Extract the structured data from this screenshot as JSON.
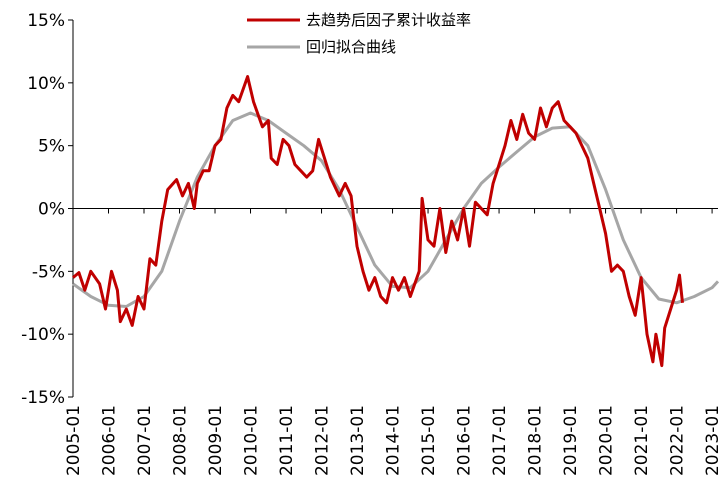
{
  "chart_data": {
    "type": "line",
    "series": [
      {
        "name": "去趋势后因子累计收益率",
        "color": "#c00000",
        "x": [
          "2005-01",
          "2005-03",
          "2005-05",
          "2005-07",
          "2005-10",
          "2005-12",
          "2006-02",
          "2006-04",
          "2006-05",
          "2006-07",
          "2006-09",
          "2006-11",
          "2007-01",
          "2007-03",
          "2007-05",
          "2007-07",
          "2007-09",
          "2007-12",
          "2008-02",
          "2008-04",
          "2008-06",
          "2008-07",
          "2008-09",
          "2008-11",
          "2009-01",
          "2009-03",
          "2009-05",
          "2009-07",
          "2009-09",
          "2009-12",
          "2010-02",
          "2010-05",
          "2010-07",
          "2010-08",
          "2010-10",
          "2010-12",
          "2011-02",
          "2011-04",
          "2011-06",
          "2011-08",
          "2011-10",
          "2011-12",
          "2012-02",
          "2012-04",
          "2012-07",
          "2012-09",
          "2012-11",
          "2013-01",
          "2013-03",
          "2013-05",
          "2013-07",
          "2013-09",
          "2013-11",
          "2014-01",
          "2014-03",
          "2014-05",
          "2014-07",
          "2014-10",
          "2014-11",
          "2015-01",
          "2015-03",
          "2015-05",
          "2015-07",
          "2015-09",
          "2015-11",
          "2016-01",
          "2016-03",
          "2016-05",
          "2016-07",
          "2016-09",
          "2016-11",
          "2017-01",
          "2017-03",
          "2017-05",
          "2017-07",
          "2017-09",
          "2017-11",
          "2018-01",
          "2018-03",
          "2018-05",
          "2018-07",
          "2018-09",
          "2018-11",
          "2019-01",
          "2019-03",
          "2019-05",
          "2019-07",
          "2019-09",
          "2019-11",
          "2020-01",
          "2020-03",
          "2020-05",
          "2020-07",
          "2020-09",
          "2020-11",
          "2021-01",
          "2021-03",
          "2021-05",
          "2021-06",
          "2021-08",
          "2021-09",
          "2021-11",
          "2022-01",
          "2022-02",
          "2022-03"
        ],
        "values": [
          -5.5,
          -5.1,
          -6.5,
          -5,
          -6,
          -8,
          -5,
          -6.5,
          -9,
          -8,
          -9.3,
          -7,
          -8,
          -4,
          -4.5,
          -1,
          1.5,
          2.3,
          1,
          2,
          0,
          2,
          3,
          3,
          5,
          5.5,
          8,
          9,
          8.5,
          10.5,
          8.5,
          6.5,
          7,
          4,
          3.5,
          5.5,
          5,
          3.5,
          3,
          2.5,
          3,
          5.5,
          4,
          2.5,
          1,
          2,
          1,
          -3,
          -5,
          -6.5,
          -5.5,
          -7,
          -7.5,
          -5.5,
          -6.5,
          -5.5,
          -7,
          -5,
          0.8,
          -2.5,
          -3,
          0,
          -3.5,
          -1,
          -2.5,
          0,
          -3,
          0.5,
          0,
          -0.5,
          2,
          3.5,
          5,
          7,
          5.5,
          7.5,
          6,
          5.5,
          8,
          6.5,
          8,
          8.5,
          7,
          6.5,
          6,
          5,
          4,
          2,
          0,
          -2,
          -5,
          -4.5,
          -5,
          -7,
          -8.5,
          -5.5,
          -10,
          -12.2,
          -10,
          -12.5,
          -9.5,
          -8,
          -6.5,
          -5.3,
          -7.5
        ]
      },
      {
        "name": "回归拟合曲线",
        "color": "#a6a6a6",
        "x": [
          "2005-01",
          "2005-07",
          "2006-01",
          "2006-07",
          "2007-01",
          "2007-07",
          "2008-01",
          "2008-07",
          "2009-01",
          "2009-07",
          "2010-01",
          "2010-07",
          "2011-01",
          "2011-07",
          "2012-01",
          "2012-07",
          "2013-01",
          "2013-07",
          "2014-01",
          "2014-07",
          "2015-01",
          "2015-07",
          "2016-01",
          "2016-07",
          "2017-01",
          "2017-07",
          "2018-01",
          "2018-07",
          "2019-01",
          "2019-07",
          "2020-01",
          "2020-07",
          "2021-01",
          "2021-07",
          "2022-01",
          "2022-07",
          "2023-01",
          "2023-03"
        ],
        "values": [
          -6,
          -7,
          -7.7,
          -7.8,
          -7,
          -5,
          -1,
          2.5,
          5,
          7,
          7.6,
          7,
          6,
          5,
          3.8,
          1.5,
          -1.5,
          -4.5,
          -6.2,
          -6.3,
          -5,
          -2.5,
          0,
          2,
          3.3,
          4.5,
          5.7,
          6.4,
          6.5,
          5,
          1.5,
          -2.5,
          -5.5,
          -7.2,
          -7.5,
          -7,
          -6.3,
          -5.8
        ]
      }
    ],
    "xlim": [
      "2005-01",
      "2023-03"
    ],
    "xticks": [
      "2005-01",
      "2006-01",
      "2007-01",
      "2008-01",
      "2009-01",
      "2010-01",
      "2011-01",
      "2012-01",
      "2013-01",
      "2014-01",
      "2015-01",
      "2016-01",
      "2017-01",
      "2018-01",
      "2019-01",
      "2020-01",
      "2021-01",
      "2022-01",
      "2023-01"
    ],
    "ylim": [
      -15,
      15
    ],
    "yticks": [
      {
        "value": 15,
        "label": "15%"
      },
      {
        "value": 10,
        "label": "10%"
      },
      {
        "value": 5,
        "label": "5%"
      },
      {
        "value": 0,
        "label": "0%"
      },
      {
        "value": -5,
        "label": "-5%"
      },
      {
        "value": -10,
        "label": "-10%"
      },
      {
        "value": -15,
        "label": "-15%"
      }
    ],
    "legend": "top"
  }
}
